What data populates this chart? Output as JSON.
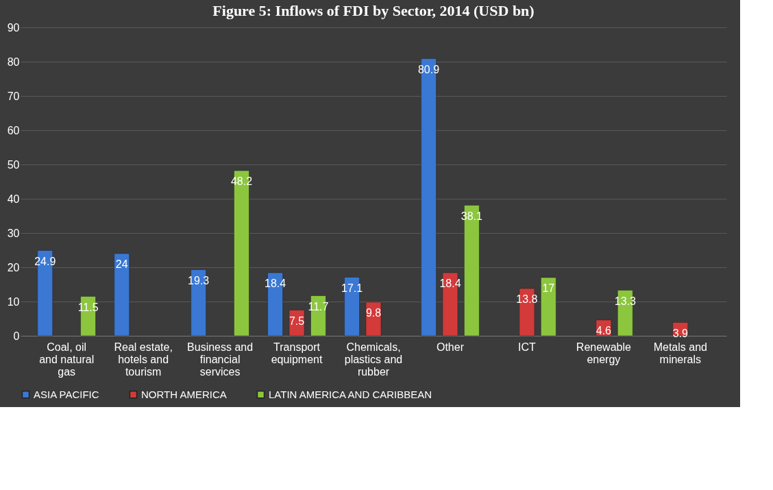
{
  "chart_data": {
    "type": "bar",
    "title": "Figure 5: Inflows of FDI by Sector, 2014 (USD bn)",
    "categories": [
      "Coal, oil and natural gas",
      "Real estate, hotels and tourism",
      "Business and financial services",
      "Transport equipment",
      "Chemicals, plastics and rubber",
      "Other",
      "ICT",
      "Renewable energy",
      "Metals and minerals"
    ],
    "series": [
      {
        "name": "ASIA PACIFIC",
        "color": "#3a78d4",
        "values": [
          24.9,
          24,
          19.3,
          18.4,
          17.1,
          80.9,
          null,
          null,
          null
        ]
      },
      {
        "name": "NORTH AMERICA",
        "color": "#d33a3a",
        "values": [
          null,
          null,
          null,
          7.5,
          9.8,
          18.4,
          13.8,
          4.6,
          3.9
        ]
      },
      {
        "name": "LATIN AMERICA AND CARIBBEAN",
        "color": "#8cc63f",
        "values": [
          11.5,
          null,
          48.2,
          11.7,
          null,
          38.1,
          17,
          13.3,
          null
        ]
      }
    ],
    "ylim": [
      0,
      90
    ],
    "yticks": [
      0,
      10,
      20,
      30,
      40,
      50,
      60,
      70,
      80,
      90
    ],
    "grid": "y",
    "legend": "bottom",
    "data_labels": true
  }
}
